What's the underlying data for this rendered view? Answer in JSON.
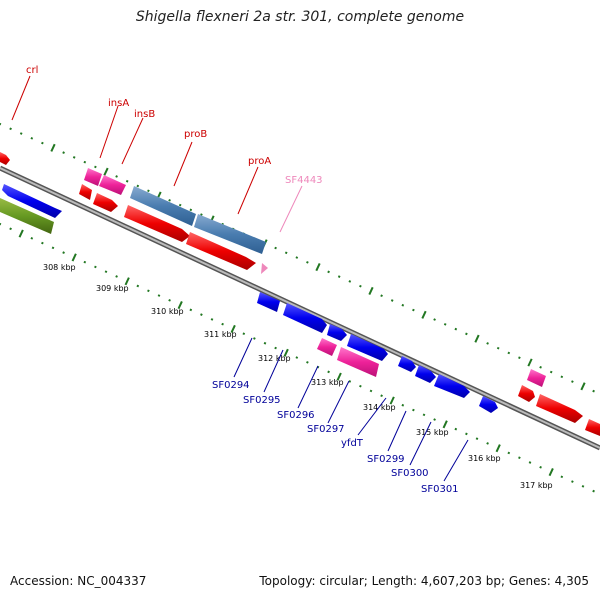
{
  "title": "Shigella flexneri 2a str. 301, complete genome",
  "footer": {
    "accession": "Accession: NC_004337",
    "stats": "Topology: circular; Length: 4,607,203 bp; Genes: 4,305"
  },
  "colors": {
    "outer_label": "#cc0000",
    "inner_label": "#000099",
    "pink_label": "#ee88bb",
    "backbone": "#888888",
    "ticks": "#227722"
  },
  "kbp_labels": [
    "308 kbp",
    "309 kbp",
    "310 kbp",
    "311 kbp",
    "312 kbp",
    "313 kbp",
    "314 kbp",
    "315 kbp",
    "316 kbp",
    "317 kbp"
  ],
  "upper_gene_labels": [
    {
      "text": "crl",
      "color": "red"
    },
    {
      "text": "insA",
      "color": "red"
    },
    {
      "text": "insB",
      "color": "red"
    },
    {
      "text": "proB",
      "color": "red"
    },
    {
      "text": "proA",
      "color": "red"
    },
    {
      "text": "SF4443",
      "color": "pink"
    }
  ],
  "lower_gene_labels": [
    "SF0294",
    "SF0295",
    "SF0296",
    "SF0297",
    "yfdT",
    "SF0299",
    "SF0300",
    "SF0301"
  ]
}
